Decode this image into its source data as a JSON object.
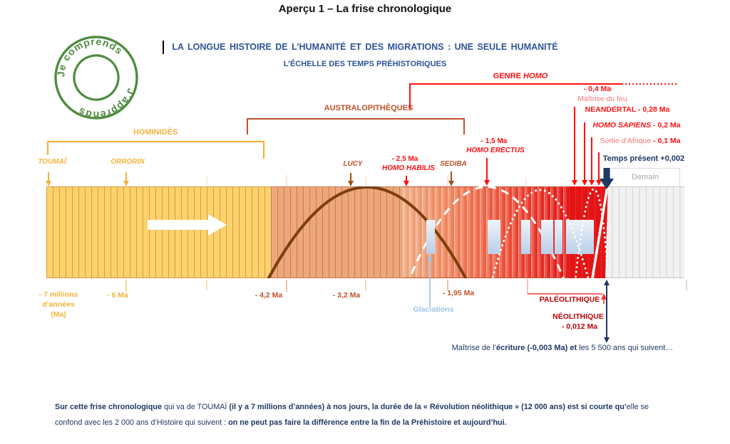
{
  "page_title": "Aperçu 1 – La frise chronologique",
  "logo": {
    "top_text": "Je comprends",
    "bottom_text": "J'apprends",
    "color": "#4E8C3F"
  },
  "heading": {
    "title": "LA LONGUE HISTOIRE DE L’HUMANITÉ ET DES MIGRATIONS : UNE SEULE HUMANITÉ",
    "subtitle": "L’ÉCHELLE DES TEMPS PRÉHISTORIQUES"
  },
  "brackets": {
    "hominides": "HOMINIDÉS",
    "australopitheques": "AUSTRALOPITHÈQUES",
    "genre_homo": [
      {
        "t": "GENRE ",
        "b": true
      },
      {
        "t": "HOMO",
        "b": true,
        "i": true
      }
    ]
  },
  "above": {
    "toumai": "TOUMAÏ",
    "orrorin": "ORRORIN",
    "lucy": "LUCY",
    "habilis_date": "- 2,5 Ma",
    "habilis": "HOMO HABILIS",
    "sediba": "SEDIBA",
    "erectus_date": "- 1,5 Ma",
    "erectus": "HOMO ERECTUS",
    "feu_date": "- 0,4 Ma",
    "feu": "Maîtrise du feu",
    "neandertal": "NEANDERTAL - 0,28 Ma",
    "sapiens": [
      {
        "t": "HOMO SAPIENS",
        "b": true,
        "i": true
      },
      {
        "t": " - 0,2 Ma",
        "b": true
      }
    ],
    "sortie": [
      {
        "t": "Sortie d’Afrique ",
        "c": "#FF7373"
      },
      {
        "t": "- 0,1 Ma",
        "b": true
      }
    ],
    "temps_present": "Temps présent +0,002",
    "demain": "Demain"
  },
  "below": {
    "ma7_1": "- 7 millions",
    "ma7_2": "d’années",
    "ma7_3": "(Ma)",
    "ma6": "- 6 Ma",
    "ma42": "- 4,2 Ma",
    "ma32": "- 3,2 Ma",
    "ma195": "- 1,95 Ma",
    "glaciations": "Glaciations",
    "paleolithique": "PALÉOLITHIQUE",
    "neolithique": "NÉOLITHIQUE",
    "neolithique_date": "- 0,012 Ma",
    "ecriture": [
      {
        "t": "Maîtrise de l’"
      },
      {
        "t": "écriture (-0,003 Ma)",
        "b": true
      },
      {
        "t": " et",
        "b": true
      },
      {
        "t": " les 5 500 ans qui suivent…"
      }
    ]
  },
  "footer": {
    "line1": [
      {
        "t": "Sur cette frise chronologique",
        "b": true
      },
      {
        "t": " qui va de TOUMAÏ "
      },
      {
        "t": "(il y a 7 millions d’années) à nos jours, la durée de la « Révolution néolithique » (12 000 ans) est si courte qu’",
        "b": true
      },
      {
        "t": "elle se"
      }
    ],
    "line2": [
      {
        "t": "confond avec les 2 000 ans d’Histoire qui suivent : "
      },
      {
        "t": "on ne peut pas faire la différence entre la fin de la Préhistoire et aujourd’hui.",
        "b": true
      }
    ]
  },
  "timeline": {
    "scale_unit": "millions d'années (Ma)",
    "range_start_ma": -7,
    "range_end": "Temps présent +0,002 / Demain",
    "groups": [
      {
        "name": "HOMINIDÉS",
        "approx_span": "-7 à -4,2 Ma"
      },
      {
        "name": "AUSTRALOPITHÈQUES",
        "approx_span": "-4,2 à -1,95 Ma"
      },
      {
        "name": "GENRE HOMO",
        "approx_span": "-2,5 Ma à aujourd'hui"
      }
    ],
    "events": [
      {
        "label": "TOUMAÏ",
        "ma": -7
      },
      {
        "label": "ORRORIN",
        "ma": -6
      },
      {
        "label": "LUCY",
        "ma": -3.2
      },
      {
        "label": "HOMO HABILIS",
        "ma": -2.5
      },
      {
        "label": "SEDIBA",
        "ma": -1.95
      },
      {
        "label": "HOMO ERECTUS",
        "ma": -1.5
      },
      {
        "label": "Maîtrise du feu",
        "ma": -0.4
      },
      {
        "label": "NEANDERTAL",
        "ma": -0.28
      },
      {
        "label": "HOMO SAPIENS",
        "ma": -0.2
      },
      {
        "label": "Sortie d'Afrique",
        "ma": -0.1
      },
      {
        "label": "NÉOLITHIQUE",
        "ma": -0.012
      },
      {
        "label": "Maîtrise de l'écriture",
        "ma": -0.003
      },
      {
        "label": "Temps présent",
        "ma": 0.002
      },
      {
        "label": "Glaciations",
        "note": "périodes glaciaires figurées par des rectangles bleu clair"
      }
    ]
  },
  "colors": {
    "heading_blue": "#2E5496",
    "navy": "#1F3864",
    "gold": "#F2B33D",
    "orange_brown": "#C0512A",
    "red": "#FF1010",
    "light_red": "#FF7373",
    "dark_red": "#C00000",
    "light_blue": "#9DC3E6",
    "logo_green": "#4E8C3F",
    "band_yellow": "#FBD26E",
    "band_orange": "#EDA77B",
    "band_red": "#E41414",
    "band_gray": "#F1F1F1"
  },
  "icons": {
    "logo": "green-circular-stamp",
    "flow_arrow": "white-right-block-arrow",
    "present_arrow": "navy-down-block-arrow",
    "event_arrow": "thin-down-arrow",
    "glaciation_pointer": "lightblue-up-arrow"
  }
}
